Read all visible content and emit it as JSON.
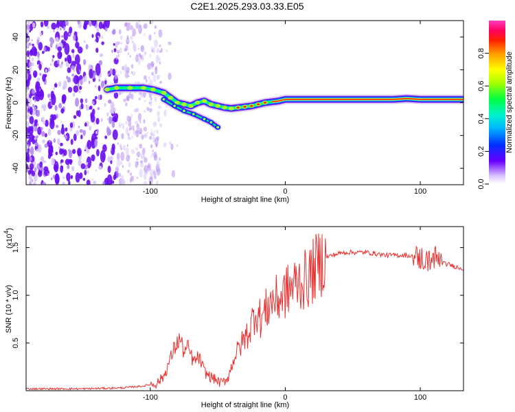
{
  "title": "C2E1.2025.293.03.33.E05",
  "chart_data": [
    {
      "type": "heatmap",
      "title": "C2E1.2025.293.03.33.E05",
      "xlabel": "Height of straight line (km)",
      "ylabel": "Frequency (Hz)",
      "xlim": [
        -192,
        132
      ],
      "ylim": [
        -50,
        50
      ],
      "xticks": [
        -100,
        0,
        100
      ],
      "xtick_labels": [
        "-100",
        "0",
        "100"
      ],
      "yticks": [
        -40,
        -20,
        0,
        20,
        40
      ],
      "ytick_labels": [
        "-40",
        "-20",
        "0",
        "20",
        "40"
      ],
      "colorbar": {
        "label": "Normalized spectral amplitude",
        "range": [
          0,
          1
        ],
        "ticks": [
          0.0,
          0.2,
          0.4,
          0.6,
          0.8
        ],
        "tick_labels": [
          "0.0",
          "0.2",
          "0.4",
          "0.6",
          "0.8"
        ]
      },
      "ridge_x": [
        -132,
        -125,
        -115,
        -105,
        -98,
        -90,
        -85,
        -80,
        -75,
        -70,
        -65,
        -60,
        -55,
        -50,
        -45,
        -40,
        -35,
        -30,
        -25,
        -20,
        -15,
        -10,
        -5,
        0,
        5,
        10,
        20,
        30,
        40,
        50,
        60,
        70,
        80,
        90,
        100,
        110,
        120,
        132
      ],
      "ridge_freq": [
        8,
        9,
        9,
        9,
        8,
        6,
        3,
        0,
        -1,
        -2,
        0,
        1,
        -1,
        -2,
        -3,
        -3.5,
        -3,
        -2.5,
        -2,
        -1,
        0,
        0.5,
        1,
        2,
        2,
        2,
        2,
        2,
        2,
        2,
        2,
        2,
        2,
        2.5,
        2,
        2,
        2,
        2
      ],
      "secondary_branch_x": [
        -90,
        -82,
        -75,
        -68,
        -60,
        -55,
        -50
      ],
      "secondary_branch_freq": [
        2,
        -2,
        -5,
        -7,
        -10,
        -12,
        -15
      ],
      "noise_region_x": [
        -192,
        -100
      ]
    },
    {
      "type": "line",
      "xlabel": "Height of straight line (km)",
      "ylabel": "SNR (10 * v/v)",
      "y_multiplier": "(x10",
      "y_multiplier_exp": "4",
      "xlim": [
        -192,
        132
      ],
      "ylim": [
        0,
        1.72
      ],
      "xticks": [
        -100,
        0,
        100
      ],
      "xtick_labels": [
        "-100",
        "0",
        "100"
      ],
      "yticks": [
        0.5,
        1.0,
        1.5
      ],
      "ytick_labels": [
        "0.5",
        "1.0",
        "1.5"
      ],
      "color": "#e8302f",
      "series": [
        {
          "name": "SNR",
          "x": [
            -192,
            -150,
            -120,
            -105,
            -95,
            -90,
            -86,
            -82,
            -78,
            -75,
            -72,
            -68,
            -64,
            -60,
            -56,
            -52,
            -48,
            -45,
            -42,
            -38,
            -34,
            -30,
            -26,
            -22,
            -18,
            -14,
            -10,
            -6,
            -2,
            2,
            6,
            10,
            14,
            18,
            22,
            26,
            30,
            35,
            40,
            45,
            50,
            55,
            60,
            65,
            70,
            75,
            80,
            85,
            90,
            96,
            100,
            105,
            110,
            114,
            118,
            122,
            126,
            132
          ],
          "y": [
            0.02,
            0.02,
            0.03,
            0.05,
            0.08,
            0.15,
            0.3,
            0.45,
            0.55,
            0.4,
            0.45,
            0.3,
            0.35,
            0.2,
            0.15,
            0.12,
            0.08,
            0.1,
            0.15,
            0.35,
            0.45,
            0.55,
            0.65,
            0.85,
            0.75,
            0.85,
            0.95,
            0.95,
            1.0,
            1.05,
            1.1,
            1.15,
            1.15,
            1.2,
            1.28,
            1.35,
            1.4,
            1.42,
            1.44,
            1.45,
            1.45,
            1.45,
            1.45,
            1.44,
            1.43,
            1.42,
            1.42,
            1.42,
            1.42,
            1.4,
            1.38,
            1.36,
            1.4,
            1.36,
            1.33,
            1.32,
            1.3,
            1.28
          ]
        }
      ]
    }
  ]
}
